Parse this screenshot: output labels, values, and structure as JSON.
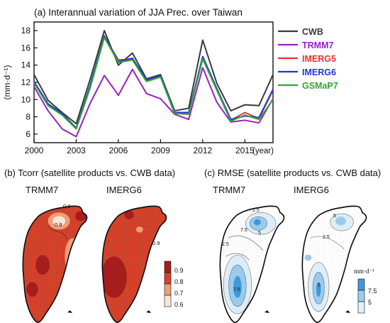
{
  "panel_a": {
    "title": "(a) Interannual variation of JJA Prec. over Taiwan",
    "ylabel": "(mm·d⁻¹)",
    "year_label": "(year)"
  },
  "panel_b": {
    "title": "(b) Tcorr (satellite products vs. CWB data)",
    "map_left_label": "TRMM7",
    "map_right_label": "IMERG6",
    "contour_labels": [
      "0.8",
      "0.8",
      "0.9"
    ],
    "colorbar_ticks": [
      "0.9",
      "0.8",
      "0.7",
      "0.6"
    ],
    "colors": [
      "#a51d1d",
      "#d8422a",
      "#ef9f78",
      "#fbe5d6"
    ]
  },
  "panel_c": {
    "title": "(c) RMSE (satellite products vs. CWB data)",
    "map_left_label": "TRMM7",
    "map_right_label": "IMERG6",
    "contour_labels": [
      "2.5",
      "7.5",
      "2.5",
      "5",
      "7.5",
      "5",
      "2.5",
      "5"
    ],
    "unit": "mm·d⁻¹",
    "colorbar_ticks": [
      "7.5",
      "5"
    ],
    "colors": [
      "#3f9ad8",
      "#9ccdee",
      "#dff0fb"
    ]
  },
  "chart_data": {
    "type": "line",
    "title": "(a) Interannual variation of JJA Prec. over Taiwan",
    "xlabel": "(year)",
    "ylabel": "(mm·d⁻¹)",
    "x": [
      2000,
      2001,
      2002,
      2003,
      2004,
      2005,
      2006,
      2007,
      2008,
      2009,
      2010,
      2011,
      2012,
      2013,
      2014,
      2015,
      2016,
      2017
    ],
    "xticks": [
      2000,
      2003,
      2006,
      2009,
      2012,
      2015
    ],
    "yticks": [
      6,
      8,
      10,
      12,
      14,
      16,
      18
    ],
    "xlim": [
      2000,
      2017
    ],
    "ylim": [
      5,
      19
    ],
    "legend_position": "right",
    "grid": false,
    "series": [
      {
        "name": "CWB",
        "color": "#3a3a3a",
        "values": [
          12.9,
          9.9,
          8.5,
          7.2,
          12.4,
          18.0,
          14.0,
          15.4,
          12.4,
          12.9,
          8.7,
          9.0,
          16.9,
          11.9,
          8.7,
          9.4,
          9.3,
          12.9
        ]
      },
      {
        "name": "TRMM7",
        "color": "#9b1fc2",
        "values": [
          11.5,
          8.7,
          6.6,
          5.7,
          9.6,
          12.8,
          10.5,
          13.5,
          10.7,
          10.1,
          8.3,
          7.7,
          13.7,
          9.7,
          7.4,
          7.6,
          7.3,
          10.1
        ]
      },
      {
        "name": "IMERG5",
        "color": "#e3342f",
        "values": [
          12.0,
          9.4,
          8.3,
          6.6,
          11.5,
          17.3,
          14.6,
          14.7,
          12.2,
          12.7,
          8.4,
          8.4,
          14.8,
          11.2,
          7.6,
          8.5,
          7.8,
          11.1
        ]
      },
      {
        "name": "IMERG6",
        "color": "#2436d6",
        "values": [
          12.1,
          9.5,
          8.4,
          6.7,
          11.7,
          17.4,
          14.4,
          14.8,
          12.3,
          12.8,
          8.5,
          8.5,
          15.0,
          11.3,
          7.7,
          8.1,
          7.9,
          11.2
        ]
      },
      {
        "name": "GSMaP7",
        "color": "#2fa82f",
        "values": [
          11.9,
          9.3,
          8.2,
          6.6,
          11.4,
          17.2,
          14.3,
          14.6,
          12.1,
          12.6,
          8.4,
          8.3,
          14.7,
          11.1,
          7.5,
          8.2,
          7.7,
          10.0
        ]
      }
    ]
  }
}
